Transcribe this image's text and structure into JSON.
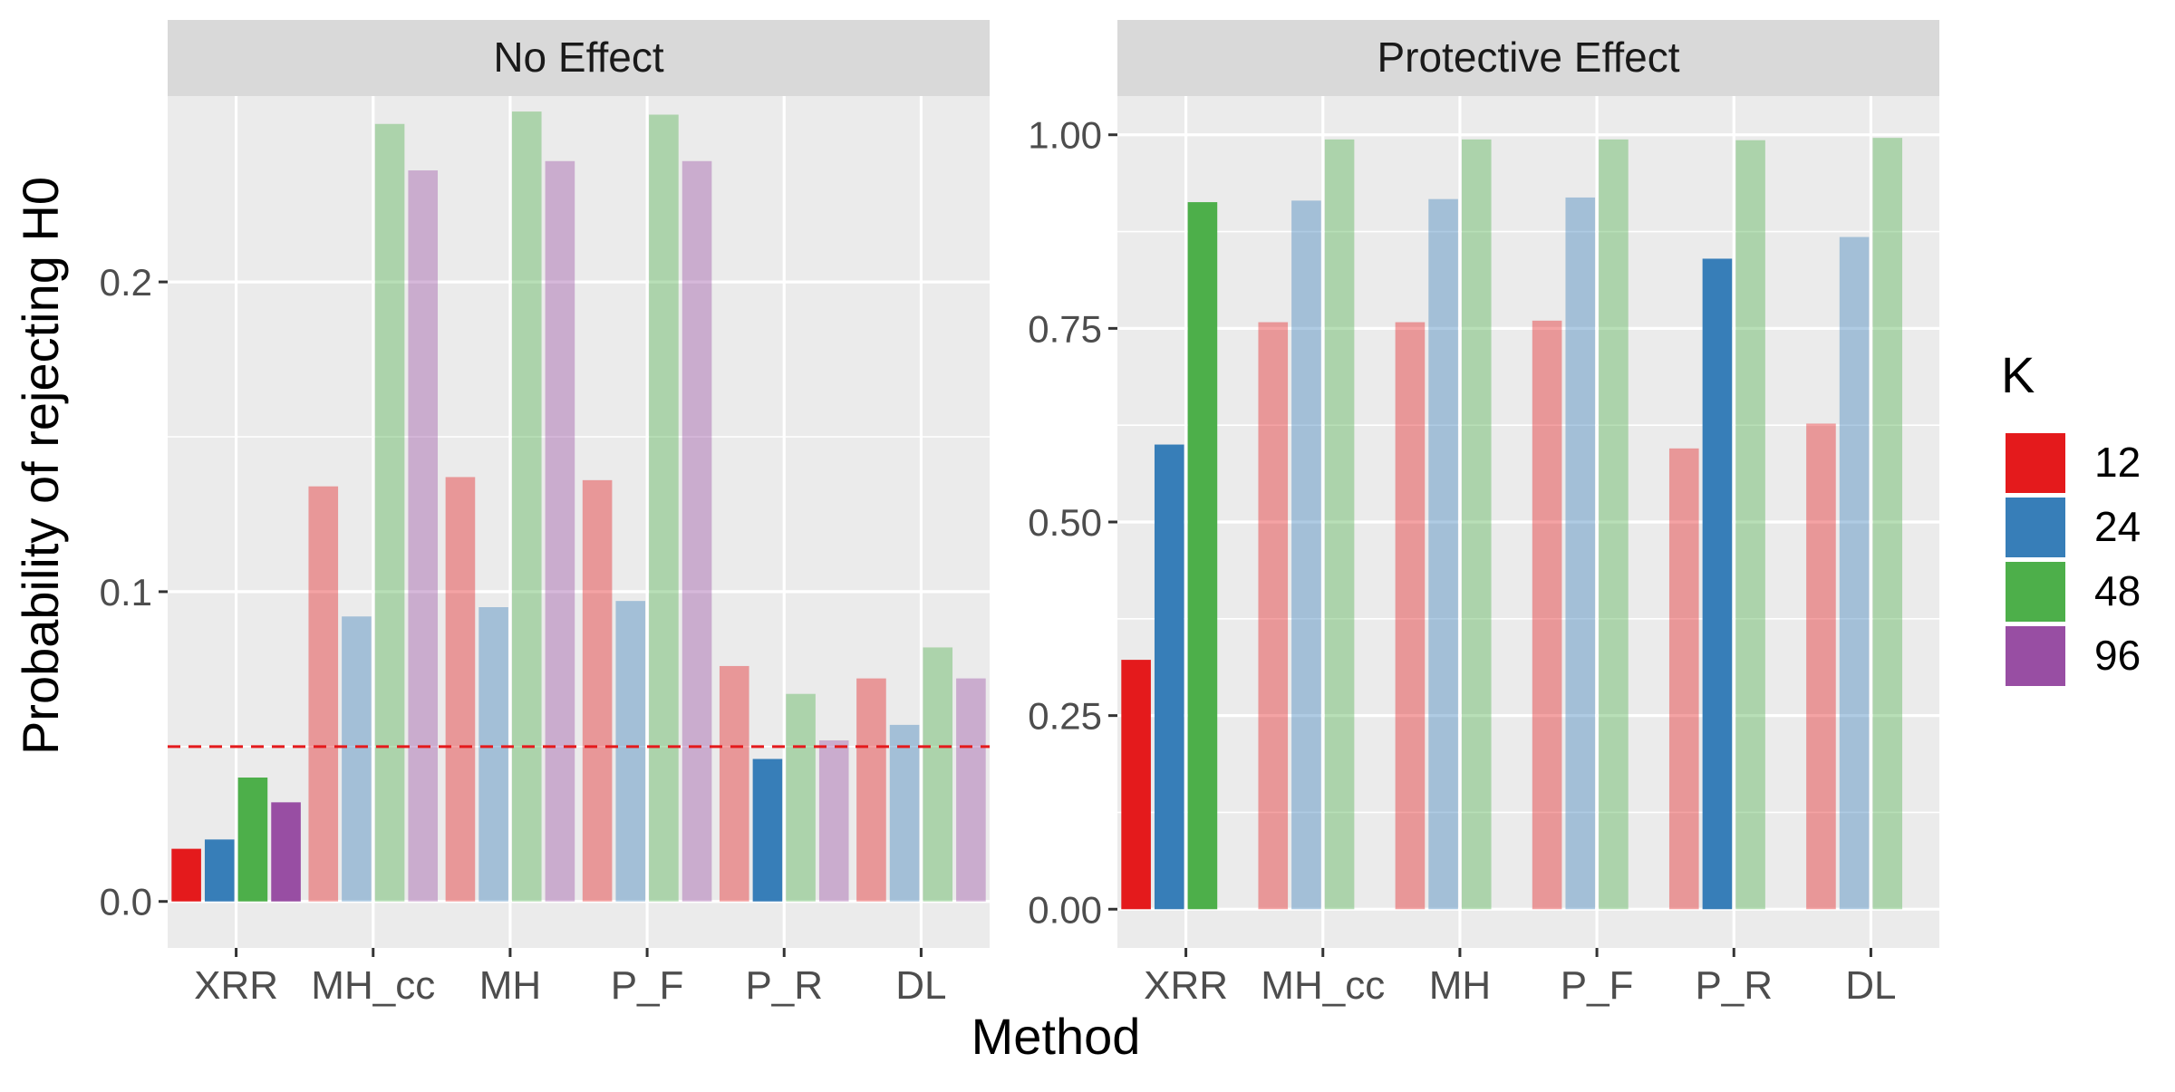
{
  "chart_data": {
    "type": "bar",
    "xlabel": "Method",
    "ylabel": "Probability of rejecting H0",
    "categories": [
      "XRR",
      "MH_cc",
      "MH",
      "P_F",
      "P_R",
      "DL"
    ],
    "legend": {
      "title": "K",
      "position": "right",
      "items": [
        {
          "label": "12",
          "color": "#E41A1C"
        },
        {
          "label": "24",
          "color": "#377EB8"
        },
        {
          "label": "48",
          "color": "#4DAF4A"
        },
        {
          "label": "96",
          "color": "#984EA3"
        }
      ]
    },
    "grid": true,
    "faded_alpha": 0.4,
    "panels": [
      {
        "title": "No Effect",
        "ylim": [
          -0.015,
          0.26
        ],
        "yticks": [
          0.0,
          0.1,
          0.2
        ],
        "ytick_labels": [
          "0.0",
          "0.1",
          "0.2"
        ],
        "reference_line": {
          "value": 0.05,
          "color": "#E41A1C",
          "style": "dashed"
        },
        "series": [
          {
            "name": "12",
            "values": [
              0.017,
              0.134,
              0.137,
              0.136,
              0.076,
              0.072
            ],
            "faded": [
              false,
              true,
              true,
              true,
              true,
              true
            ]
          },
          {
            "name": "24",
            "values": [
              0.02,
              0.092,
              0.095,
              0.097,
              0.046,
              0.057
            ],
            "faded": [
              false,
              true,
              true,
              true,
              false,
              true
            ]
          },
          {
            "name": "48",
            "values": [
              0.04,
              0.251,
              0.255,
              0.254,
              0.067,
              0.082
            ],
            "faded": [
              false,
              true,
              true,
              true,
              true,
              true
            ]
          },
          {
            "name": "96",
            "values": [
              0.032,
              0.236,
              0.239,
              0.239,
              0.052,
              0.072
            ],
            "faded": [
              false,
              true,
              true,
              true,
              true,
              true
            ]
          }
        ]
      },
      {
        "title": "Protective Effect",
        "ylim": [
          -0.05,
          1.05
        ],
        "yticks": [
          0.0,
          0.25,
          0.5,
          0.75,
          1.0
        ],
        "ytick_labels": [
          "0.00",
          "0.25",
          "0.50",
          "0.75",
          "1.00"
        ],
        "reference_line": null,
        "series": [
          {
            "name": "12",
            "values": [
              0.322,
              0.758,
              0.758,
              0.76,
              0.595,
              0.627
            ],
            "faded": [
              false,
              true,
              true,
              true,
              true,
              true
            ]
          },
          {
            "name": "24",
            "values": [
              0.6,
              0.915,
              0.917,
              0.919,
              0.84,
              0.868
            ],
            "faded": [
              false,
              true,
              true,
              true,
              false,
              true
            ]
          },
          {
            "name": "48",
            "values": [
              0.913,
              0.994,
              0.994,
              0.994,
              0.993,
              0.996
            ],
            "faded": [
              false,
              true,
              true,
              true,
              true,
              true
            ]
          },
          {
            "name": "96",
            "values": [
              null,
              null,
              null,
              null,
              null,
              null
            ],
            "faded": [
              false,
              false,
              false,
              false,
              false,
              false
            ]
          }
        ]
      }
    ]
  }
}
